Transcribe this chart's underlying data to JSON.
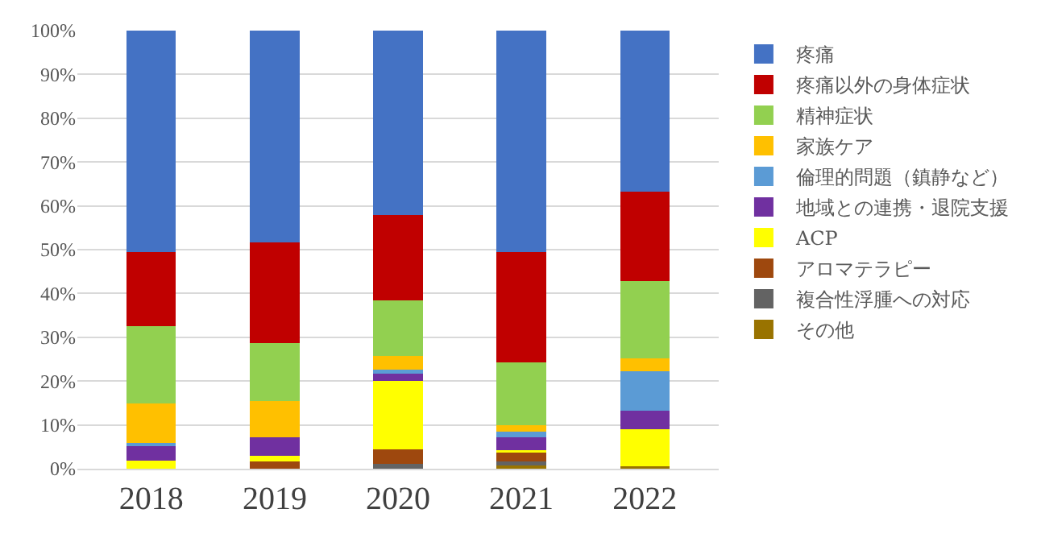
{
  "chart_data": {
    "type": "bar",
    "stacked": true,
    "categories": [
      "2018",
      "2019",
      "2020",
      "2021",
      "2022"
    ],
    "series": [
      {
        "name": "その他",
        "color": "#997300",
        "values": [
          0,
          0,
          0,
          0.9,
          0.5
        ]
      },
      {
        "name": "複合性浮腫への対応",
        "color": "#636363",
        "values": [
          0,
          0,
          1.1,
          0.7,
          0
        ]
      },
      {
        "name": "アロマテラピー",
        "color": "#9e480e",
        "values": [
          0,
          1.6,
          3.4,
          2.3,
          0
        ]
      },
      {
        "name": "ACP",
        "color": "#ffff00",
        "values": [
          1.8,
          1.3,
          15.6,
          0.4,
          8.6
        ]
      },
      {
        "name": "地域との連携・退院支援",
        "color": "#7030a0",
        "values": [
          3.3,
          4.2,
          1.9,
          2.8,
          4.1
        ]
      },
      {
        "name": "倫理的問題（鎮静など）",
        "color": "#5b9bd5",
        "values": [
          0.8,
          0,
          0.7,
          1.4,
          9.1
        ]
      },
      {
        "name": "家族ケア",
        "color": "#ffc000",
        "values": [
          8.9,
          8.4,
          3.0,
          1.5,
          2.9
        ]
      },
      {
        "name": "精神症状",
        "color": "#92d050",
        "values": [
          17.8,
          13.2,
          12.7,
          14.3,
          17.6
        ]
      },
      {
        "name": "疼痛以外の身体症状",
        "color": "#c00000",
        "values": [
          16.8,
          23.0,
          19.5,
          25.1,
          20.5
        ]
      },
      {
        "name": "疼痛",
        "color": "#4472c4",
        "values": [
          50.6,
          48.3,
          42.1,
          50.6,
          36.7
        ]
      }
    ],
    "ylim": [
      0,
      100
    ],
    "yticks": [
      {
        "value": 0,
        "label": "0%"
      },
      {
        "value": 10,
        "label": "10%"
      },
      {
        "value": 20,
        "label": "20%"
      },
      {
        "value": 30,
        "label": "30%"
      },
      {
        "value": 40,
        "label": "40%"
      },
      {
        "value": 50,
        "label": "50%"
      },
      {
        "value": 60,
        "label": "60%"
      },
      {
        "value": 70,
        "label": "70%"
      },
      {
        "value": 80,
        "label": "80%"
      },
      {
        "value": 90,
        "label": "90%"
      },
      {
        "value": 100,
        "label": "100%"
      }
    ],
    "grid": "y",
    "legend": "right"
  }
}
